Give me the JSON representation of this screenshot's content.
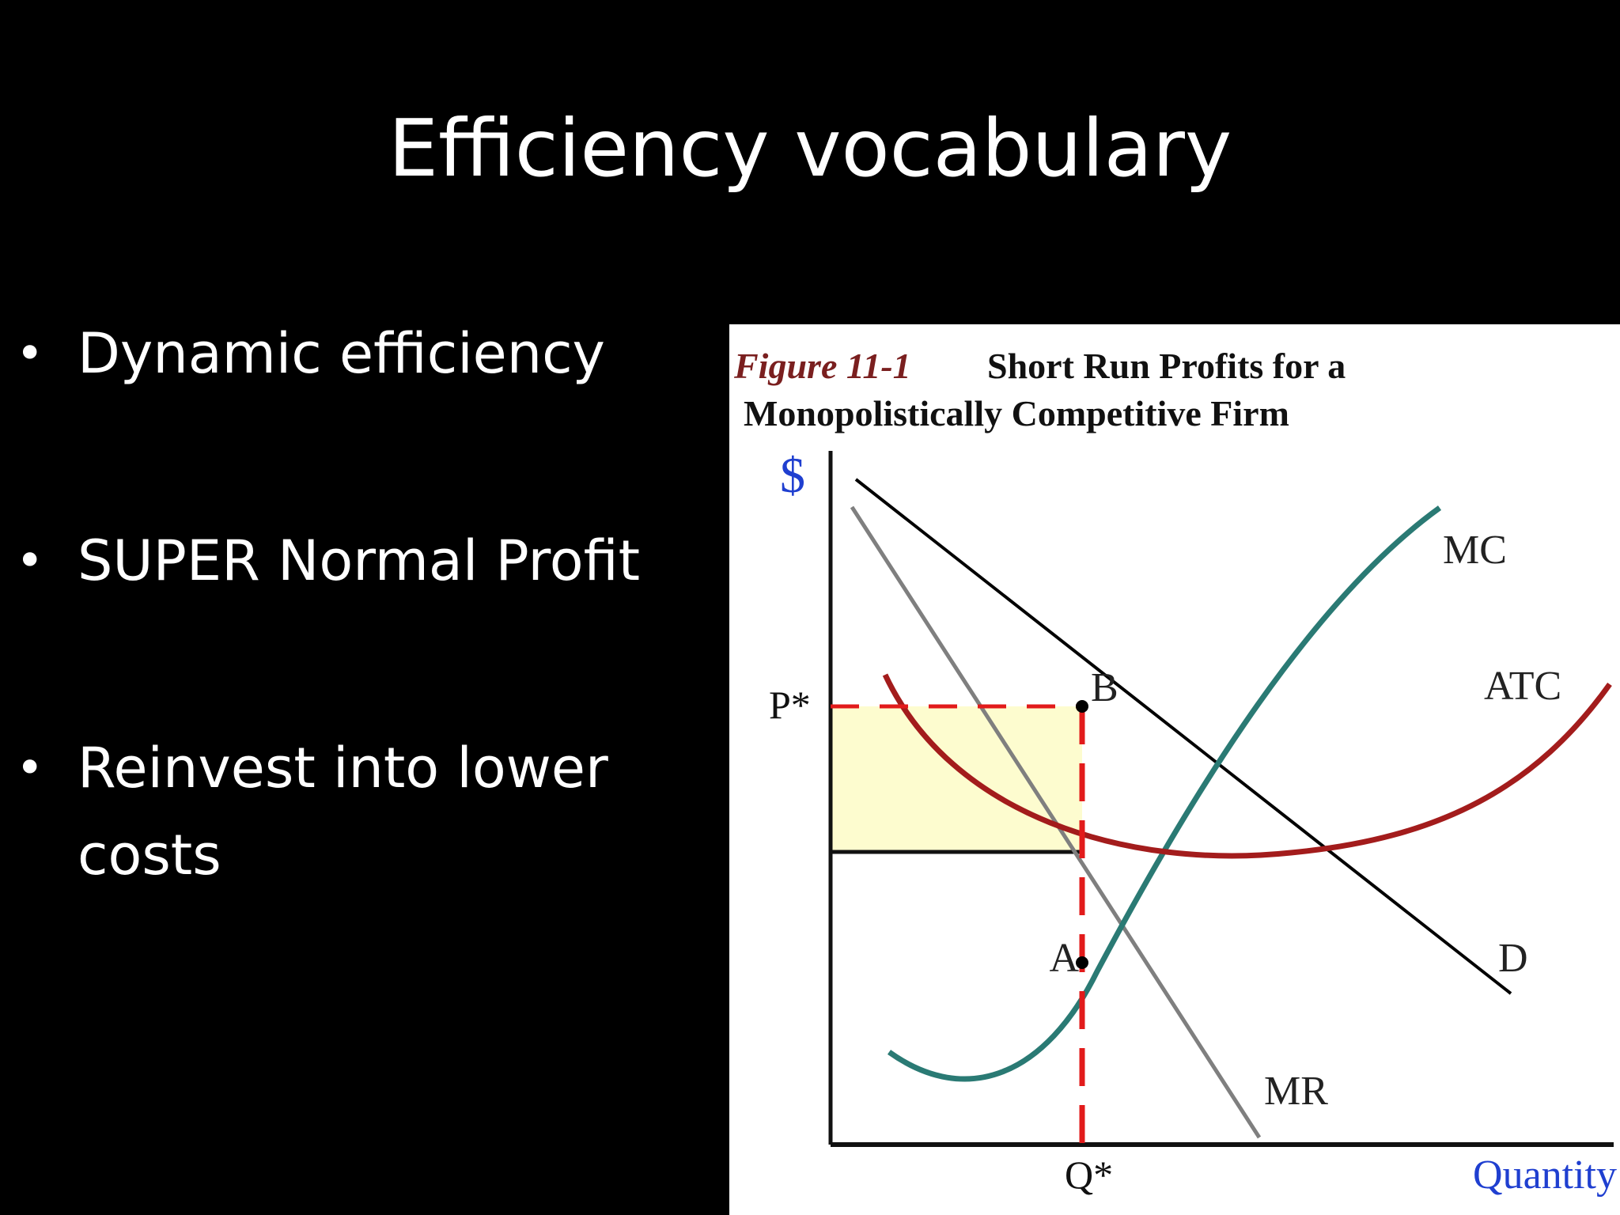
{
  "slide": {
    "title": "Efficiency vocabulary",
    "bullets": [
      {
        "lines": [
          "Dynamic efficiency"
        ]
      },
      {
        "lines": [
          "SUPER Normal Profit"
        ]
      },
      {
        "lines": [
          "Reinvest into lower",
          "costs"
        ]
      }
    ]
  },
  "figure": {
    "caption_number": "Figure 11-1",
    "caption_title_line1": "Short Run Profits for a",
    "caption_title_line2": "Monopolistically Competitive Firm",
    "y_axis_label": "$",
    "x_axis_label": "Quantity",
    "price_label": "P*",
    "quantity_label": "Q*",
    "curve_labels": {
      "mc": "MC",
      "atc": "ATC",
      "demand": "D",
      "mr": "MR"
    },
    "point_labels": {
      "b": "B",
      "a": "A"
    },
    "colors": {
      "caption_number": "#7a1f1f",
      "axis_label": "#1f3fd0",
      "mc_curve": "#2a7a74",
      "atc_curve": "#a31c1c",
      "demand_curve": "#000000",
      "mr_curve": "#7f7f7f",
      "profit_area": "#fdfccf",
      "guide_lines": "#e21b1b"
    }
  }
}
